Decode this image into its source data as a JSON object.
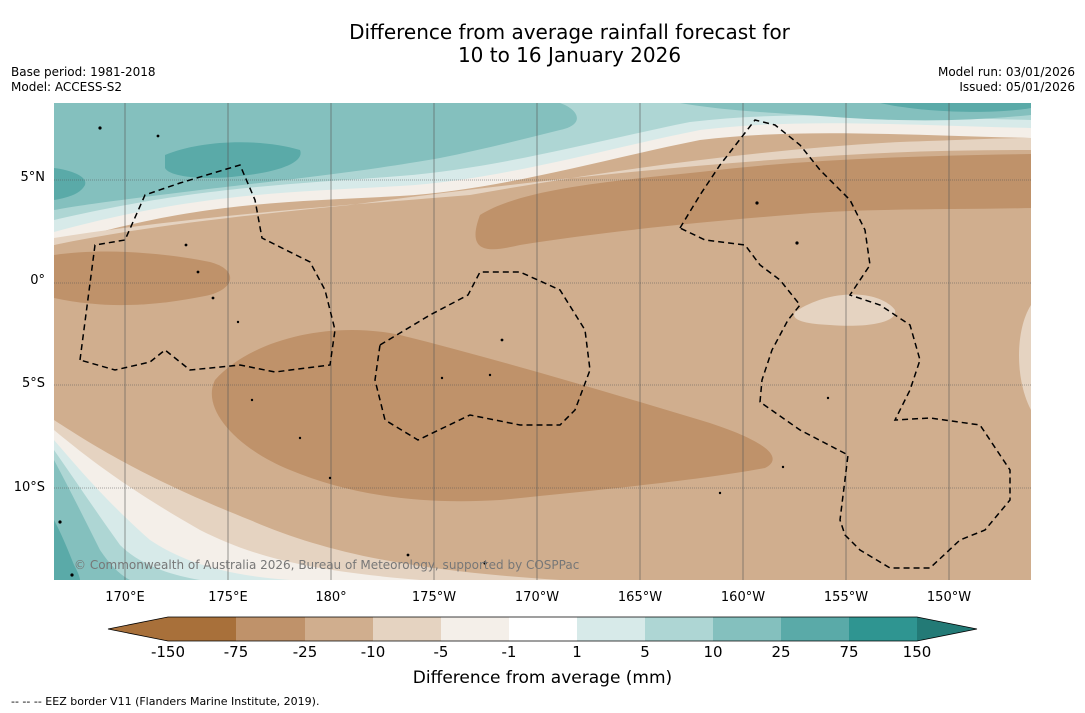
{
  "header": {
    "title_line1": "Difference from average rainfall forecast for",
    "title_line2": "10 to 16 January 2026",
    "base_period": "Base period: 1981-2018",
    "model": "Model: ACCESS-S2",
    "model_run": "Model run: 03/01/2026",
    "issued": "Issued: 05/01/2026"
  },
  "map": {
    "lat_labels": [
      "5°N",
      "0°",
      "5°S",
      "10°S"
    ],
    "lon_labels": [
      "170°E",
      "175°E",
      "180°",
      "175°W",
      "170°W",
      "165°W",
      "160°W",
      "155°W",
      "150°W"
    ],
    "copyright": "© Commonwealth of Australia 2026, Bureau of Meteorology, supported by COSPPac",
    "eez_color": "#000000"
  },
  "legend": {
    "label": "Difference from average (mm)",
    "ticks": [
      "-150",
      "-75",
      "-25",
      "-10",
      "-5",
      "-1",
      "1",
      "5",
      "10",
      "25",
      "75",
      "150"
    ],
    "colors": [
      "#a8703a",
      "#bf926a",
      "#d0ae8e",
      "#e5d3c1",
      "#f4efe9",
      "#ffffff",
      "#d7eae9",
      "#aed6d4",
      "#84c0be",
      "#5aaaa8",
      "#2f9591",
      "#237a76"
    ]
  },
  "footer": {
    "eez_note": "--  --  -- EEZ border V11 (Flanders Marine Institute, 2019)."
  }
}
